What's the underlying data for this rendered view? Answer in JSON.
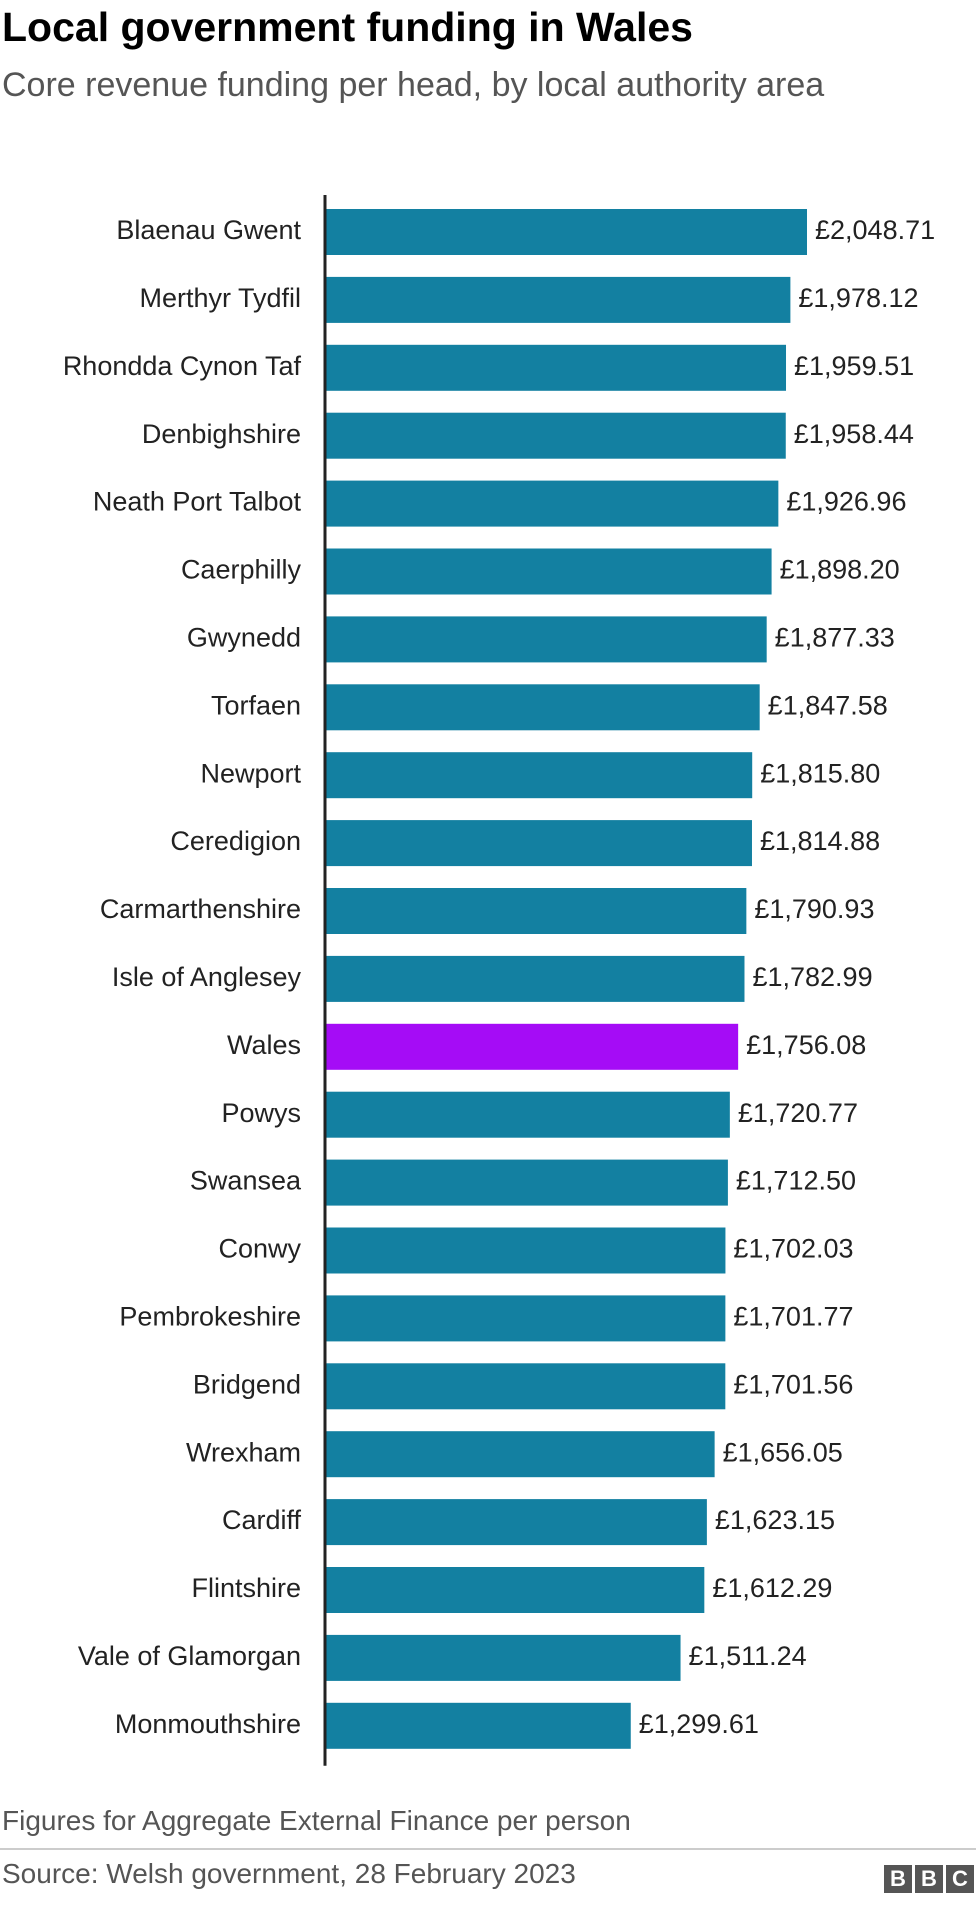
{
  "chart_data": {
    "type": "bar",
    "orientation": "horizontal",
    "title": "Local government funding in Wales",
    "subtitle": "Core revenue funding per head, by local authority area",
    "categories": [
      "Blaenau Gwent",
      "Merthyr Tydfil",
      "Rhondda Cynon Taf",
      "Denbighshire",
      "Neath Port Talbot",
      "Caerphilly",
      "Gwynedd",
      "Torfaen",
      "Newport",
      "Ceredigion",
      "Carmarthenshire",
      "Isle of Anglesey",
      "Wales",
      "Powys",
      "Swansea",
      "Conwy",
      "Pembrokeshire",
      "Bridgend",
      "Wrexham",
      "Cardiff",
      "Flintshire",
      "Vale of Glamorgan",
      "Monmouthshire"
    ],
    "values": [
      2048.71,
      1978.12,
      1959.51,
      1958.44,
      1926.96,
      1898.2,
      1877.33,
      1847.58,
      1815.8,
      1814.88,
      1790.93,
      1782.99,
      1756.08,
      1720.77,
      1712.5,
      1702.03,
      1701.77,
      1701.56,
      1656.05,
      1623.15,
      1612.29,
      1511.24,
      1299.61
    ],
    "value_labels": [
      "£2,048.71",
      "£1,978.12",
      "£1,959.51",
      "£1,958.44",
      "£1,926.96",
      "£1,898.20",
      "£1,877.33",
      "£1,847.58",
      "£1,815.80",
      "£1,814.88",
      "£1,790.93",
      "£1,782.99",
      "£1,756.08",
      "£1,720.77",
      "£1,712.50",
      "£1,702.03",
      "£1,701.77",
      "£1,701.56",
      "£1,656.05",
      "£1,623.15",
      "£1,612.29",
      "£1,511.24",
      "£1,299.61"
    ],
    "colors": [
      "#1380a1",
      "#1380a1",
      "#1380a1",
      "#1380a1",
      "#1380a1",
      "#1380a1",
      "#1380a1",
      "#1380a1",
      "#1380a1",
      "#1380a1",
      "#1380a1",
      "#1380a1",
      "#a50cf6",
      "#1380a1",
      "#1380a1",
      "#1380a1",
      "#1380a1",
      "#1380a1",
      "#1380a1",
      "#1380a1",
      "#1380a1",
      "#1380a1",
      "#1380a1"
    ],
    "note": "Figures for Aggregate External Finance per person",
    "source": "Source: Welsh government, 28 February 2023",
    "logo": "BBC"
  }
}
